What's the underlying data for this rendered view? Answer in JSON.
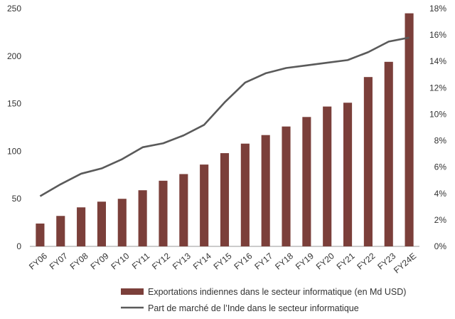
{
  "chart_data": {
    "type": "bar",
    "categories": [
      "FY06",
      "FY07",
      "FY08",
      "FY09",
      "FY10",
      "FY11",
      "FY12",
      "FY13",
      "FY14",
      "FY15",
      "FY16",
      "FY17",
      "FY18",
      "FY19",
      "FY20",
      "FY21",
      "FY22",
      "FY23",
      "FY24E"
    ],
    "series": [
      {
        "name": "Exportations indiennes dans le secteur informatique (en Md USD)",
        "type": "bar",
        "axis": "left",
        "color": "#7b3f3a",
        "values": [
          24,
          32,
          41,
          47,
          50,
          59,
          69,
          76,
          86,
          98,
          108,
          117,
          126,
          136,
          147,
          151,
          178,
          194,
          245
        ]
      },
      {
        "name": "Part de marché de l’Inde dans le secteur informatique",
        "type": "line",
        "axis": "right",
        "color": "#5a5a5a",
        "values": [
          3.8,
          4.7,
          5.5,
          5.9,
          6.6,
          7.5,
          7.8,
          8.4,
          9.2,
          10.9,
          12.4,
          13.1,
          13.5,
          13.7,
          13.9,
          14.1,
          14.7,
          15.5,
          15.8
        ]
      }
    ],
    "y_left": {
      "ylim": [
        0,
        250
      ],
      "ticks": [
        "0",
        "50",
        "100",
        "150",
        "200",
        "250"
      ]
    },
    "y_right": {
      "ylim": [
        0,
        18
      ],
      "ticks": [
        "0%",
        "2%",
        "4%",
        "6%",
        "8%",
        "10%",
        "12%",
        "14%",
        "16%",
        "18%"
      ]
    },
    "grid": false,
    "legend_position": "bottom"
  }
}
